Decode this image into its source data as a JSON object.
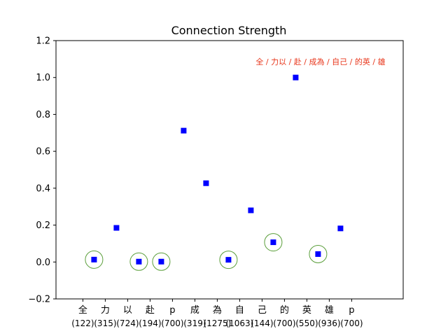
{
  "chart_data": {
    "type": "scatter",
    "title": "Connection Strength",
    "annotation": "全 / 力以 / 赴 / 成為 / 自己 / 的英 / 雄",
    "ylim": [
      -0.2,
      1.2
    ],
    "yticks": [
      "−0.2",
      "0.0",
      "0.2",
      "0.4",
      "0.6",
      "0.8",
      "1.0",
      "1.2"
    ],
    "grid": false,
    "marker_color": "#0000ff",
    "circle_color": "#5a9e3a",
    "annotation_color": "#e8361b",
    "categories": [
      "全",
      "力",
      "以",
      "赴",
      "p",
      "成",
      "為",
      "自",
      "己",
      "的",
      "英",
      "雄",
      "p"
    ],
    "counts": [
      "(122)",
      "(315)",
      "(724)",
      "(194)",
      "(700)",
      "(319)",
      "(1275)",
      "(1063)",
      "(144)",
      "(700)",
      "(550)",
      "(936)",
      "(700)"
    ],
    "points": [
      {
        "x": 0.5,
        "y": 0.013,
        "circled": true
      },
      {
        "x": 1.5,
        "y": 0.185,
        "circled": false
      },
      {
        "x": 2.5,
        "y": 0.002,
        "circled": true
      },
      {
        "x": 3.5,
        "y": 0.002,
        "circled": true
      },
      {
        "x": 4.5,
        "y": 0.712,
        "circled": false
      },
      {
        "x": 5.5,
        "y": 0.427,
        "circled": false
      },
      {
        "x": 6.5,
        "y": 0.012,
        "circled": true
      },
      {
        "x": 7.5,
        "y": 0.28,
        "circled": false
      },
      {
        "x": 8.5,
        "y": 0.107,
        "circled": true
      },
      {
        "x": 9.5,
        "y": 1.0,
        "circled": false
      },
      {
        "x": 10.5,
        "y": 0.043,
        "circled": true
      },
      {
        "x": 11.5,
        "y": 0.182,
        "circled": false
      }
    ]
  }
}
